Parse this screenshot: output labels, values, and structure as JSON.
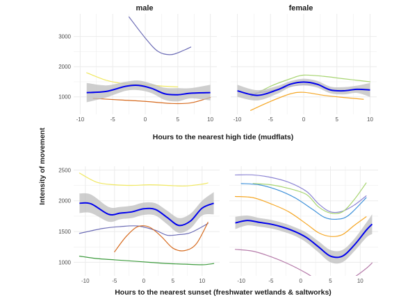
{
  "chart_data": {
    "type": "line",
    "ylabel": "Intensity of movement",
    "facet_columns": [
      "male",
      "female"
    ],
    "grid": true,
    "panel_background": "#ffffff",
    "grid_color": "#ebebeb",
    "smooth_color": "#0000ee",
    "ribbon_color": "#bebebe",
    "rows": [
      {
        "xlabel": "Hours to the nearest high tide (mudflats)",
        "xlim": [
          -11,
          11
        ],
        "ylim": [
          420,
          3750
        ],
        "x_ticks": [
          -10,
          -5,
          0,
          5,
          10
        ],
        "y_ticks": [
          1000,
          2000,
          3000
        ],
        "panels": [
          {
            "facet": "male",
            "smooth": {
              "x": [
                -9,
                -6,
                -3,
                -1,
                1,
                3,
                5,
                7,
                10
              ],
              "y": [
                1140,
                1180,
                1350,
                1380,
                1280,
                1100,
                1070,
                1120,
                1140
              ],
              "lower": [
                820,
                980,
                1200,
                1220,
                1120,
                900,
                850,
                950,
                880
              ],
              "upper": [
                1460,
                1380,
                1500,
                1540,
                1440,
                1300,
                1290,
                1290,
                1400
              ]
            },
            "series": [
              {
                "color": "#6b6bb5",
                "x": [
                  -2.5,
                  0,
                  2,
                  4,
                  6,
                  7
                ],
                "y": [
                  3650,
                  2950,
                  2500,
                  2400,
                  2550,
                  2650
                ]
              },
              {
                "color": "#f0e860",
                "x": [
                  -9,
                  -6,
                  -3,
                  0,
                  3,
                  5
                ],
                "y": [
                  1800,
                  1550,
                  1430,
                  1400,
                  1350,
                  1330
                ]
              },
              {
                "color": "#d66a1e",
                "x": [
                  -8,
                  -4,
                  0,
                  4,
                  7,
                  10
                ],
                "y": [
                  950,
                  900,
                  850,
                  780,
                  800,
                  980
                ]
              }
            ]
          },
          {
            "facet": "female",
            "smooth": {
              "x": [
                -10,
                -7,
                -4,
                -2,
                0,
                2,
                4,
                6,
                8,
                10
              ],
              "y": [
                1200,
                1050,
                1230,
                1420,
                1490,
                1420,
                1230,
                1200,
                1250,
                1230
              ],
              "lower": [
                1000,
                880,
                1100,
                1320,
                1380,
                1310,
                1120,
                1080,
                1130,
                1000
              ],
              "upper": [
                1400,
                1220,
                1360,
                1520,
                1600,
                1530,
                1340,
                1320,
                1370,
                1460
              ]
            },
            "series": [
              {
                "color": "#a6d46f",
                "x": [
                  -8,
                  -5,
                  -2,
                  0,
                  3,
                  6,
                  10
                ],
                "y": [
                  1000,
                  1350,
                  1600,
                  1720,
                  1680,
                  1600,
                  1500
                ]
              },
              {
                "color": "#f5a623",
                "x": [
                  -8,
                  -5,
                  -2,
                  0,
                  3,
                  6,
                  9
                ],
                "y": [
                  550,
                  850,
                  1100,
                  1150,
                  1050,
                  980,
                  920
                ]
              },
              {
                "color": "#8b83d3",
                "x": [
                  -8,
                  -5,
                  -2,
                  0,
                  2
                ],
                "y": [
                  1100,
                  1200,
                  1350,
                  1400,
                  1400
                ]
              }
            ]
          }
        ]
      },
      {
        "xlabel": "Hours to the nearest sunset (freshwater wetlands & saltworks)",
        "xlim": [
          -12,
          13
        ],
        "ylim": [
          780,
          2560
        ],
        "x_ticks": [
          -10,
          -5,
          0,
          5,
          10
        ],
        "y_ticks": [
          1000,
          1500,
          2000,
          2500
        ],
        "panels": [
          {
            "facet": "male",
            "smooth": {
              "x": [
                -11,
                -9,
                -6,
                -4,
                -2,
                0,
                2,
                4,
                6,
                8,
                10,
                12
              ],
              "y": [
                1960,
                1950,
                1780,
                1800,
                1820,
                1870,
                1860,
                1730,
                1600,
                1670,
                1880,
                1960
              ],
              "lower": [
                1800,
                1800,
                1660,
                1700,
                1720,
                1770,
                1760,
                1620,
                1480,
                1550,
                1760,
                1780
              ],
              "upper": [
                2120,
                2100,
                1900,
                1900,
                1920,
                1970,
                1960,
                1840,
                1720,
                1790,
                2000,
                2140
              ]
            },
            "series": [
              {
                "color": "#f0e860",
                "x": [
                  -11,
                  -8,
                  -5,
                  -2,
                  1,
                  4,
                  7,
                  10,
                  11
                ],
                "y": [
                  2450,
                  2300,
                  2260,
                  2250,
                  2260,
                  2250,
                  2240,
                  2270,
                  2290
                ]
              },
              {
                "color": "#6b6bb5",
                "x": [
                  -11,
                  -7,
                  -4,
                  -1,
                  2,
                  4,
                  6,
                  8,
                  11
                ],
                "y": [
                  1470,
                  1550,
                  1580,
                  1590,
                  1520,
                  1440,
                  1450,
                  1480,
                  1630
                ]
              },
              {
                "color": "#d66a1e",
                "x": [
                  -5,
                  -3,
                  -1,
                  1,
                  3,
                  5,
                  7,
                  9,
                  11
                ],
                "y": [
                  1170,
                  1420,
                  1580,
                  1570,
                  1420,
                  1230,
                  1190,
                  1300,
                  1650
                ]
              },
              {
                "color": "#3c9a3c",
                "x": [
                  -11,
                  -8,
                  -5,
                  -2,
                  1,
                  4,
                  7,
                  10,
                  12
                ],
                "y": [
                  1100,
                  1060,
                  1040,
                  1020,
                  1000,
                  980,
                  970,
                  960,
                  980
                ]
              }
            ]
          },
          {
            "facet": "female",
            "smooth": {
              "x": [
                -11,
                -9,
                -7,
                -5,
                -3,
                -1,
                1,
                3,
                5,
                7,
                9,
                11,
                12
              ],
              "y": [
                1640,
                1680,
                1650,
                1620,
                1570,
                1500,
                1400,
                1250,
                1100,
                1100,
                1280,
                1520,
                1620
              ],
              "lower": [
                1540,
                1600,
                1580,
                1550,
                1500,
                1430,
                1320,
                1160,
                1000,
                1000,
                1180,
                1400,
                1460
              ],
              "upper": [
                1740,
                1760,
                1720,
                1690,
                1640,
                1570,
                1480,
                1340,
                1200,
                1200,
                1380,
                1640,
                1780
              ]
            },
            "series": [
              {
                "color": "#8b83d3",
                "x": [
                  -11,
                  -8,
                  -5,
                  -2,
                  1,
                  3,
                  5,
                  7,
                  9,
                  11
                ],
                "y": [
                  2420,
                  2420,
                  2380,
                  2300,
                  2150,
                  1950,
                  1820,
                  1830,
                  1930,
                  2080
                ]
              },
              {
                "color": "#a6d46f",
                "x": [
                  -8,
                  -5,
                  -2,
                  1,
                  3,
                  5,
                  7,
                  9,
                  11
                ],
                "y": [
                  2280,
                  2260,
                  2200,
                  2100,
                  1900,
                  1800,
                  1820,
                  2020,
                  2290
                ]
              },
              {
                "color": "#3b8fd9",
                "x": [
                  -10,
                  -7,
                  -4,
                  -1,
                  2,
                  4,
                  6,
                  8,
                  11
                ],
                "y": [
                  2280,
                  2260,
                  2180,
                  2050,
                  1860,
                  1730,
                  1700,
                  1760,
                  2050
                ]
              },
              {
                "color": "#f5a623",
                "x": [
                  -11,
                  -8,
                  -5,
                  -2,
                  1,
                  3,
                  5,
                  7,
                  9,
                  11
                ],
                "y": [
                  2070,
                  2050,
                  1950,
                  1820,
                  1620,
                  1480,
                  1420,
                  1450,
                  1600,
                  1740
                ]
              },
              {
                "color": "#b57aa9",
                "x": [
                  -11,
                  -8,
                  -5,
                  -2,
                  1,
                  3,
                  5,
                  7,
                  9,
                  11,
                  12
                ],
                "y": [
                  1210,
                  1180,
                  1090,
                  970,
                  820,
                  700,
                  650,
                  670,
                  760,
                  900,
                  990
                ]
              }
            ]
          }
        ]
      }
    ]
  }
}
